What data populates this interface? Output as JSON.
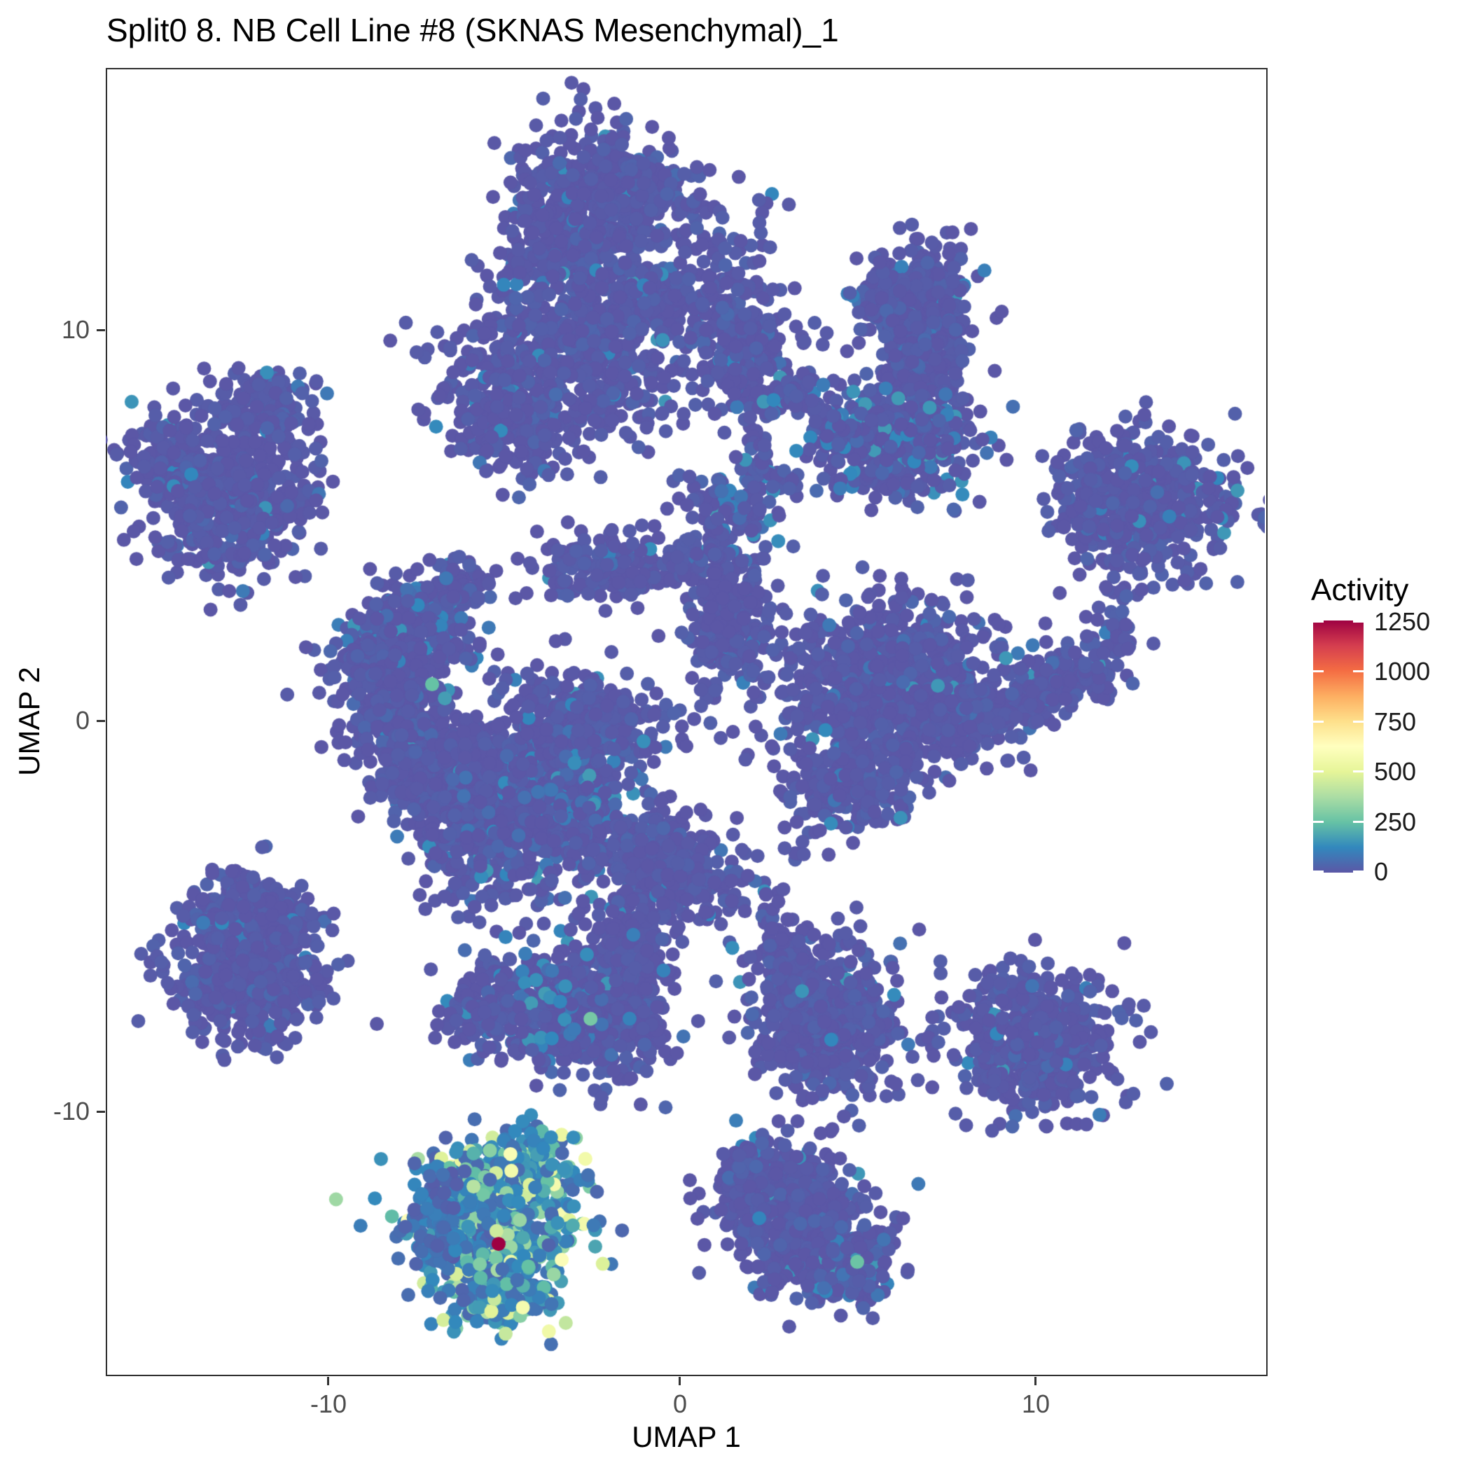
{
  "title": "Split0 8. NB Cell Line #8 (SKNAS Mesenchymal)_1",
  "axes": {
    "x": {
      "label": "UMAP 1",
      "ticks": [
        "-10",
        "0",
        "10"
      ],
      "tick_values": [
        -10,
        0,
        10
      ]
    },
    "y": {
      "label": "UMAP 2",
      "ticks": [
        "10",
        "0",
        "-10"
      ],
      "tick_values": [
        10,
        0,
        -10
      ]
    }
  },
  "legend": {
    "title": "Activity",
    "ticks": [
      "1250",
      "1000",
      "750",
      "500",
      "250",
      "0"
    ],
    "tick_values": [
      1250,
      1000,
      750,
      500,
      250,
      0
    ],
    "min": 0,
    "max": 1250,
    "position": "right"
  },
  "colors": {
    "spectral_reversed": [
      "#5b57a6",
      "#3288bd",
      "#66c2a5",
      "#abdda4",
      "#e6f598",
      "#ffffbf",
      "#fee08b",
      "#fdae61",
      "#f46d43",
      "#d53e4f",
      "#9e0142"
    ],
    "base_point": "#5b57a6",
    "highlight_max": "#9e0142",
    "panel_border": "#2f2f2f",
    "tick_label": "#4d4d4d",
    "text": "#000000"
  },
  "chart_data": {
    "type": "scatter",
    "title": "Split0 8. NB Cell Line #8 (SKNAS Mesenchymal)_1",
    "xlabel": "UMAP 1",
    "ylabel": "UMAP 2",
    "xlim": [
      -16.2,
      16.6
    ],
    "ylim": [
      -16.8,
      16.7
    ],
    "x_ticks": [
      -10,
      0,
      10
    ],
    "y_ticks": [
      -10,
      0,
      10
    ],
    "grid": false,
    "legend_position": "right",
    "color_scale": {
      "name": "spectral_reversed",
      "domain": [
        0,
        1250
      ],
      "variable": "Activity"
    },
    "point_radius_px": 10,
    "seed": 421,
    "clusters": [
      {
        "id": "top-knob",
        "x": -2.24,
        "y": 14.59,
        "sx": 0.36,
        "sy": 0.29,
        "n": 15,
        "activity": "zero"
      },
      {
        "id": "top-head-left",
        "x": -2.79,
        "y": 12.53,
        "sx": 1.09,
        "sy": 1.34,
        "n": 550,
        "activity": "zero"
      },
      {
        "id": "top-head-top",
        "x": -1.31,
        "y": 13.69,
        "sx": 0.89,
        "sy": 0.45,
        "n": 150,
        "activity": "zero"
      },
      {
        "id": "top-head-bottom",
        "x": -0.81,
        "y": 10.73,
        "sx": 0.89,
        "sy": 0.5,
        "n": 180,
        "activity": "zero"
      },
      {
        "id": "top-body",
        "x": -3.19,
        "y": 9.12,
        "sx": 1.68,
        "sy": 0.99,
        "n": 500,
        "activity": "zero"
      },
      {
        "id": "top-body-tail",
        "x": -4.57,
        "y": 7.69,
        "sx": 0.89,
        "sy": 0.63,
        "n": 200,
        "activity": "zero"
      },
      {
        "id": "top-strand",
        "x": 0.28,
        "y": 12.8,
        "sx": 0.24,
        "sy": 0.72,
        "n": 12,
        "activity": "zero"
      },
      {
        "id": "top-sparse",
        "x": 1.17,
        "y": 13.06,
        "sx": 0.5,
        "sy": 0.45,
        "n": 8,
        "activity": "zero"
      },
      {
        "id": "top-sparse2",
        "x": 2.55,
        "y": 13.42,
        "sx": 0.3,
        "sy": 0.27,
        "n": 4,
        "activity": "zero"
      },
      {
        "id": "arc-lower",
        "x": 1.66,
        "y": 9.48,
        "sx": 0.79,
        "sy": 0.81,
        "n": 220,
        "activity": "zero"
      },
      {
        "id": "arc-upper",
        "x": 1.17,
        "y": 11.27,
        "sx": 0.79,
        "sy": 0.72,
        "n": 60,
        "activity": "zero"
      },
      {
        "id": "j-arm",
        "x": 6.91,
        "y": 10.47,
        "sx": 0.75,
        "sy": 0.81,
        "n": 280,
        "activity": "zero"
      },
      {
        "id": "j-arm-left",
        "x": 5.92,
        "y": 10.91,
        "sx": 0.5,
        "sy": 0.45,
        "n": 80,
        "activity": "zero"
      },
      {
        "id": "j-neck",
        "x": 6.81,
        "y": 8.76,
        "sx": 0.59,
        "sy": 0.63,
        "n": 150,
        "activity": "zero"
      },
      {
        "id": "j-lobe",
        "x": 6.12,
        "y": 7.15,
        "sx": 1.19,
        "sy": 0.68,
        "n": 400,
        "activity": "lowmix"
      },
      {
        "id": "j-dots-a",
        "x": 3.9,
        "y": 10.02,
        "sx": 0.2,
        "sy": 0.2,
        "n": 3,
        "activity": "zero"
      },
      {
        "id": "j-dots-b",
        "x": 3.35,
        "y": 6.08,
        "sx": 0.5,
        "sy": 0.2,
        "n": 5,
        "activity": "zero"
      },
      {
        "id": "j-dots-c",
        "x": 4.63,
        "y": 7.51,
        "sx": 0.4,
        "sy": 0.3,
        "n": 12,
        "activity": "zero"
      },
      {
        "id": "farleft-top",
        "x": -11.7,
        "y": 7.87,
        "sx": 0.75,
        "sy": 0.54,
        "n": 180,
        "activity": "zero"
      },
      {
        "id": "farleft-left",
        "x": -14.28,
        "y": 6.79,
        "sx": 0.69,
        "sy": 0.54,
        "n": 160,
        "activity": "zero"
      },
      {
        "id": "farleft-main",
        "x": -12.69,
        "y": 5.36,
        "sx": 1.19,
        "sy": 0.86,
        "n": 450,
        "activity": "zero"
      },
      {
        "id": "farright-top",
        "x": 13.05,
        "y": 5.54,
        "sx": 1.29,
        "sy": 0.9,
        "n": 550,
        "activity": "zero"
      },
      {
        "id": "farright-strand",
        "x": 12.36,
        "y": 2.58,
        "sx": 0.32,
        "sy": 0.68,
        "n": 30,
        "activity": "zero"
      },
      {
        "id": "farright-lower",
        "x": 10.08,
        "y": 0.7,
        "sx": 1.39,
        "sy": 0.45,
        "n": 280,
        "activity": "zero",
        "rot": -25
      },
      {
        "id": "farright-tip",
        "x": 8.5,
        "y": 0.25,
        "sx": 0.5,
        "sy": 0.22,
        "n": 40,
        "activity": "zero"
      },
      {
        "id": "midleft-tip",
        "x": -6.46,
        "y": 3.48,
        "sx": 0.4,
        "sy": 0.39,
        "n": 60,
        "activity": "zero"
      },
      {
        "id": "midleft-upper",
        "x": -7.54,
        "y": 2.49,
        "sx": 0.89,
        "sy": 0.63,
        "n": 250,
        "activity": "lowmix"
      },
      {
        "id": "midleft-lower",
        "x": -8.14,
        "y": 1.24,
        "sx": 0.99,
        "sy": 0.54,
        "n": 250,
        "activity": "zero"
      },
      {
        "id": "midleft-below",
        "x": -7.94,
        "y": 0.16,
        "sx": 0.5,
        "sy": 0.3,
        "n": 30,
        "activity": "zero"
      },
      {
        "id": "hook-top",
        "x": -7.94,
        "y": -0.11,
        "sx": 0.69,
        "sy": 0.39,
        "n": 150,
        "activity": "zero"
      },
      {
        "id": "hook-arm",
        "x": -7.74,
        "y": -1.36,
        "sx": 0.5,
        "sy": 0.54,
        "n": 120,
        "activity": "zero"
      },
      {
        "id": "kidney-left",
        "x": -5.92,
        "y": -2.35,
        "sx": 0.75,
        "sy": 1.08,
        "n": 450,
        "activity": "zero"
      },
      {
        "id": "kidney-left-top",
        "x": -5.96,
        "y": -0.82,
        "sx": 0.59,
        "sy": 0.39,
        "n": 130,
        "activity": "zero"
      },
      {
        "id": "kidney-right",
        "x": -3.39,
        "y": -1.81,
        "sx": 0.95,
        "sy": 1.25,
        "n": 650,
        "activity": "lowmix"
      },
      {
        "id": "kidney-right-top",
        "x": -2.5,
        "y": -0.02,
        "sx": 1.09,
        "sy": 0.5,
        "n": 230,
        "activity": "zero"
      },
      {
        "id": "mess-right",
        "x": -0.81,
        "y": -3.51,
        "sx": 0.89,
        "sy": 0.68,
        "n": 280,
        "activity": "zero"
      },
      {
        "id": "mess-bridge",
        "x": 0.38,
        "y": -4.14,
        "sx": 0.69,
        "sy": 0.45,
        "n": 120,
        "activity": "zero"
      },
      {
        "id": "mess-pair",
        "x": -4.28,
        "y": -3.78,
        "sx": 0.24,
        "sy": 0.18,
        "n": 4,
        "activity": "zero"
      },
      {
        "id": "bar-left",
        "x": -1.8,
        "y": 3.92,
        "sx": 1.19,
        "sy": 0.45,
        "n": 160,
        "activity": "zero"
      },
      {
        "id": "column",
        "x": 1.37,
        "y": 2.67,
        "sx": 0.59,
        "sy": 1.08,
        "n": 260,
        "activity": "zero"
      },
      {
        "id": "column-dots",
        "x": -0.02,
        "y": -0.2,
        "sx": 0.3,
        "sy": 0.4,
        "n": 6,
        "activity": "zero"
      },
      {
        "id": "chain-arc1",
        "x": 2.75,
        "y": 8.14,
        "sx": 0.79,
        "sy": 0.25,
        "n": 45,
        "activity": "lowmix",
        "rot": -25
      },
      {
        "id": "chain-arc2",
        "x": 3.84,
        "y": 7.87,
        "sx": 0.5,
        "sy": 0.25,
        "n": 30,
        "activity": "zero",
        "rot": 35
      },
      {
        "id": "chain-strand",
        "x": 2.16,
        "y": 6.43,
        "sx": 0.28,
        "sy": 0.63,
        "n": 40,
        "activity": "zero"
      },
      {
        "id": "chain-diag",
        "x": 1.47,
        "y": 5.45,
        "sx": 0.89,
        "sy": 0.28,
        "n": 60,
        "activity": "lowmix",
        "rot": 22
      },
      {
        "id": "chain-join",
        "x": 0.77,
        "y": 4.46,
        "sx": 0.36,
        "sy": 0.45,
        "n": 40,
        "activity": "zero"
      },
      {
        "id": "chain-dots",
        "x": 3.25,
        "y": 6.25,
        "sx": 0.44,
        "sy": 0.25,
        "n": 6,
        "activity": "zero"
      },
      {
        "id": "chain-single-a",
        "x": -1.17,
        "y": 6.92,
        "sx": 0.15,
        "sy": 0.15,
        "n": 2,
        "activity": "zero"
      },
      {
        "id": "chain-single-b",
        "x": 0.08,
        "y": 6.16,
        "sx": 0.2,
        "sy": 0.2,
        "n": 2,
        "activity": "zero"
      },
      {
        "id": "center-main",
        "x": 5.92,
        "y": 0.88,
        "sx": 1.49,
        "sy": 1.08,
        "n": 800,
        "activity": "zero"
      },
      {
        "id": "center-right",
        "x": 7.6,
        "y": 0.43,
        "sx": 0.59,
        "sy": 0.63,
        "n": 150,
        "activity": "zero"
      },
      {
        "id": "center-tail",
        "x": 4.83,
        "y": -1.72,
        "sx": 0.89,
        "sy": 0.54,
        "n": 220,
        "activity": "zero"
      },
      {
        "id": "center-trail",
        "x": 2.79,
        "y": -3.83,
        "sx": 1.29,
        "sy": 0.25,
        "n": 14,
        "activity": "zero",
        "rot": -55
      },
      {
        "id": "center-topdots",
        "x": 3.15,
        "y": 1.59,
        "sx": 0.25,
        "sy": 0.45,
        "n": 5,
        "activity": "zero"
      },
      {
        "id": "heart-left-a",
        "x": -12.69,
        "y": -4.86,
        "sx": 0.59,
        "sy": 0.45,
        "n": 140,
        "activity": "zero"
      },
      {
        "id": "heart-left-b",
        "x": -11.41,
        "y": -5.04,
        "sx": 0.55,
        "sy": 0.45,
        "n": 130,
        "activity": "zero"
      },
      {
        "id": "heart-left-main",
        "x": -12.2,
        "y": -6.47,
        "sx": 1.09,
        "sy": 0.81,
        "n": 450,
        "activity": "zero"
      },
      {
        "id": "mini-heart",
        "x": -5.37,
        "y": -6.34,
        "sx": 0.32,
        "sy": 0.3,
        "n": 20,
        "activity": "zero"
      },
      {
        "id": "triangle-right",
        "x": -1.7,
        "y": -7.19,
        "sx": 0.79,
        "sy": 0.99,
        "n": 350,
        "activity": "zero"
      },
      {
        "id": "triangle-mid",
        "x": -3.58,
        "y": -7.37,
        "sx": 1.09,
        "sy": 0.72,
        "n": 330,
        "activity": "lowmix"
      },
      {
        "id": "triangle-tip",
        "x": -5.76,
        "y": -7.54,
        "sx": 0.5,
        "sy": 0.36,
        "n": 110,
        "activity": "zero"
      },
      {
        "id": "triangle-spike",
        "x": -1.31,
        "y": -5.84,
        "sx": 0.44,
        "sy": 0.45,
        "n": 90,
        "activity": "zero"
      },
      {
        "id": "rightcenter-arm",
        "x": 2.85,
        "y": -5.75,
        "sx": 0.5,
        "sy": 0.39,
        "n": 70,
        "activity": "zero"
      },
      {
        "id": "rightcenter-main",
        "x": 4.04,
        "y": -7.72,
        "sx": 1.03,
        "sy": 0.99,
        "n": 550,
        "activity": "zero"
      },
      {
        "id": "rightcenter-trail",
        "x": 2.75,
        "y": -4.77,
        "sx": 0.25,
        "sy": 0.25,
        "n": 6,
        "activity": "zero"
      },
      {
        "id": "right-low",
        "x": 10.08,
        "y": -8.26,
        "sx": 1.09,
        "sy": 0.9,
        "n": 500,
        "activity": "zero"
      },
      {
        "id": "active-top",
        "x": -5.07,
        "y": -11.58,
        "sx": 1.03,
        "sy": 0.54,
        "n": 280,
        "activity": "colorful"
      },
      {
        "id": "active-mid",
        "x": -5.37,
        "y": -13.01,
        "sx": 1.19,
        "sy": 0.68,
        "n": 350,
        "activity": "colorful"
      },
      {
        "id": "active-bottom",
        "x": -5.17,
        "y": -14.44,
        "sx": 0.75,
        "sy": 0.54,
        "n": 220,
        "activity": "colorful"
      },
      {
        "id": "active-leftedge",
        "x": -6.75,
        "y": -12.92,
        "sx": 0.4,
        "sy": 0.72,
        "n": 100,
        "activity": "colorful_low"
      },
      {
        "id": "bottomcenter-a",
        "x": 2.65,
        "y": -12.03,
        "sx": 0.89,
        "sy": 0.63,
        "n": 280,
        "activity": "zero"
      },
      {
        "id": "bottomcenter-b",
        "x": 3.74,
        "y": -13.28,
        "sx": 1.09,
        "sy": 0.72,
        "n": 350,
        "activity": "zero"
      },
      {
        "id": "bottomcenter-c",
        "x": 4.83,
        "y": -14.09,
        "sx": 0.59,
        "sy": 0.45,
        "n": 150,
        "activity": "lowmix"
      },
      {
        "id": "bottomcenter-tip",
        "x": 1.86,
        "y": -11.4,
        "sx": 0.36,
        "sy": 0.27,
        "n": 50,
        "activity": "zero"
      }
    ],
    "highlight_points": [
      {
        "x": -7.01,
        "y": 0.93,
        "activity": 250
      },
      {
        "x": -6.65,
        "y": 0.57,
        "activity": 170
      },
      {
        "x": -2.53,
        "y": -7.63,
        "activity": 280
      },
      {
        "x": -3.39,
        "y": -7.19,
        "activity": 120
      },
      {
        "x": -2.99,
        "y": -7.9,
        "activity": 90
      },
      {
        "x": 3.45,
        "y": -6.92,
        "activity": 150
      },
      {
        "x": 5.01,
        "y": -13.85,
        "activity": 260
      },
      {
        "x": -4.77,
        "y": -11.52,
        "activity": 560
      },
      {
        "x": -5.84,
        "y": -11.92,
        "activity": 400
      },
      {
        "x": -5.19,
        "y": -13.06,
        "activity": 450
      },
      {
        "x": -4.53,
        "y": -12.78,
        "activity": 340
      },
      {
        "x": -5.66,
        "y": -13.91,
        "activity": 300
      },
      {
        "x": -5.13,
        "y": -13.39,
        "activity": 1250
      }
    ]
  }
}
